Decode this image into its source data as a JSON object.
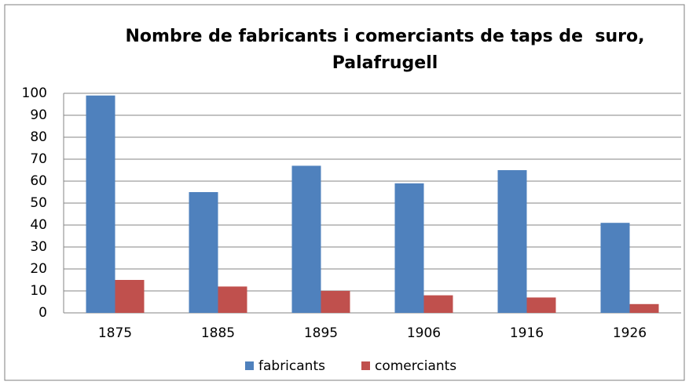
{
  "chart_data": {
    "type": "bar",
    "title": "Nombre de fabricants i comerciants de taps de  suro, Palafrugell",
    "categories": [
      "1875",
      "1885",
      "1895",
      "1906",
      "1916",
      "1926"
    ],
    "series": [
      {
        "name": "fabricants",
        "color": "#4f81bd",
        "values": [
          99,
          55,
          67,
          59,
          65,
          41
        ]
      },
      {
        "name": "comerciants",
        "color": "#c0504d",
        "values": [
          15,
          12,
          10,
          8,
          7,
          4
        ]
      }
    ],
    "ylim": [
      0,
      100
    ],
    "yticks": [
      0,
      10,
      20,
      30,
      40,
      50,
      60,
      70,
      80,
      90,
      100
    ],
    "grid": true,
    "legend": "bottom"
  }
}
